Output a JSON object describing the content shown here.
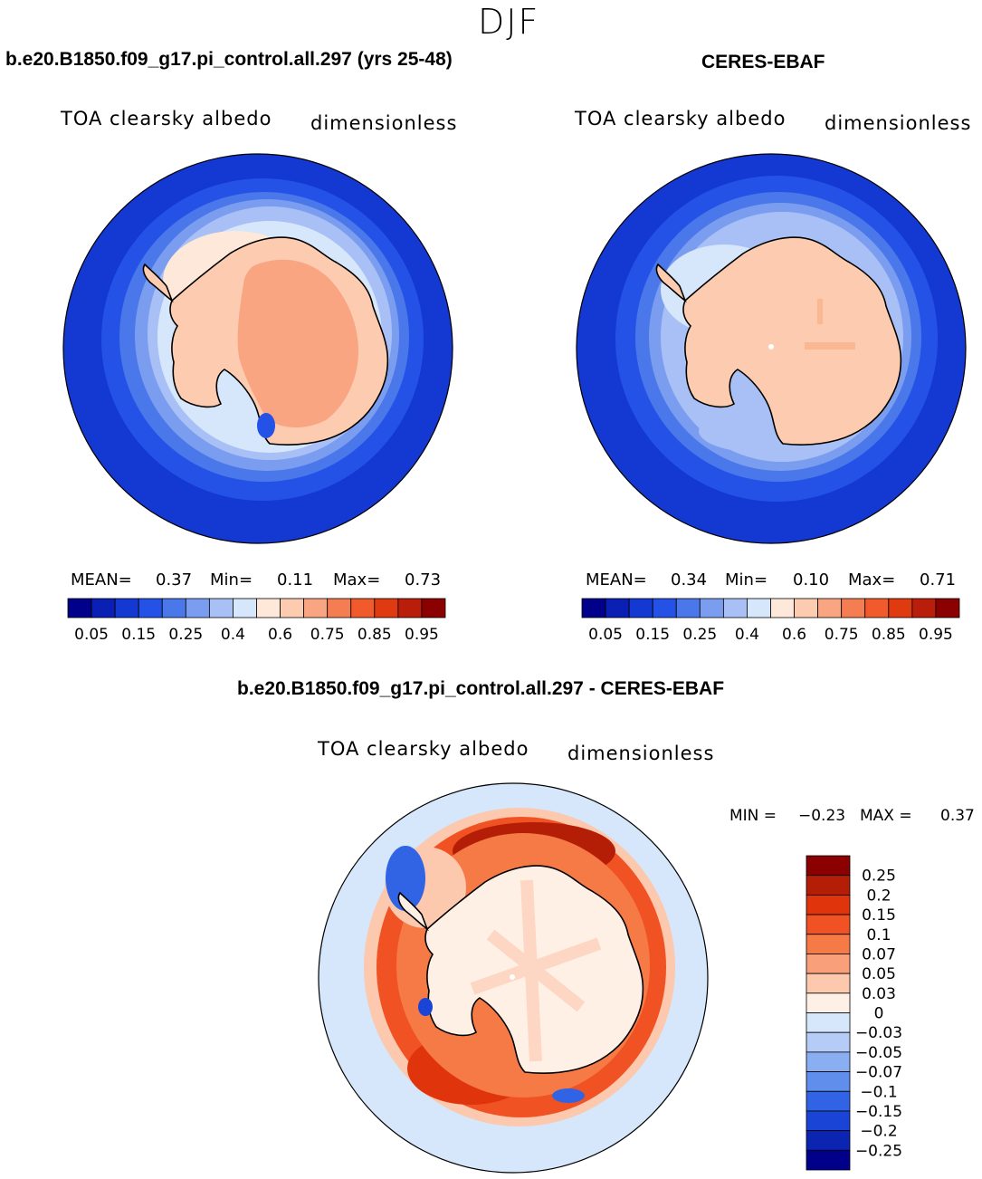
{
  "season": "DJF",
  "panels": [
    {
      "title": "b.e20.B1850.f09_g17.pi_control.all.297 (yrs 25-48)",
      "variable": "TOA clearsky albedo",
      "units": "dimensionless",
      "stats": {
        "mean_label": "MEAN=",
        "mean": "0.37",
        "min_label": "Min=",
        "min": "0.11",
        "max_label": "Max=",
        "max": "0.73"
      }
    },
    {
      "title": "CERES-EBAF",
      "variable": "TOA clearsky albedo",
      "units": "dimensionless",
      "stats": {
        "mean_label": "MEAN=",
        "mean": "0.34",
        "min_label": "Min=",
        "min": "0.10",
        "max_label": "Max=",
        "max": "0.71"
      }
    },
    {
      "title": "b.e20.B1850.f09_g17.pi_control.all.297 - CERES-EBAF",
      "variable": "TOA clearsky albedo",
      "units": "dimensionless",
      "stats": {
        "min_label": "MIN =",
        "min": "−0.23",
        "max_label": "MAX =",
        "max": "0.37"
      }
    }
  ],
  "colorbar_seq": {
    "colors": [
      "#00008b",
      "#0a1fb4",
      "#1438d2",
      "#2452e6",
      "#4a78ea",
      "#7a9df0",
      "#a8c0f5",
      "#d6e6fb",
      "#fde8da",
      "#fccbb0",
      "#f9a582",
      "#f57d52",
      "#f15a2b",
      "#e03a10",
      "#b81e0a",
      "#8b0000"
    ],
    "labels": [
      "0.05",
      "0.15",
      "0.25",
      "0.4",
      "0.6",
      "0.75",
      "0.85",
      "0.95"
    ]
  },
  "colorbar_diff": {
    "colors": [
      "#8b0000",
      "#b41e07",
      "#e0340c",
      "#f05224",
      "#f57a45",
      "#f9a07a",
      "#fcc8ae",
      "#fff0e6",
      "#d6e6fb",
      "#b4ccf6",
      "#8aaef2",
      "#5f8eec",
      "#3064e4",
      "#1a44d6",
      "#0b24b2",
      "#00008b"
    ],
    "labels": [
      "0.25",
      "0.2",
      "0.15",
      "0.1",
      "0.07",
      "0.05",
      "0.03",
      "0",
      "−0.03",
      "−0.05",
      "−0.07",
      "−0.1",
      "−0.15",
      "−0.2",
      "−0.25"
    ]
  }
}
